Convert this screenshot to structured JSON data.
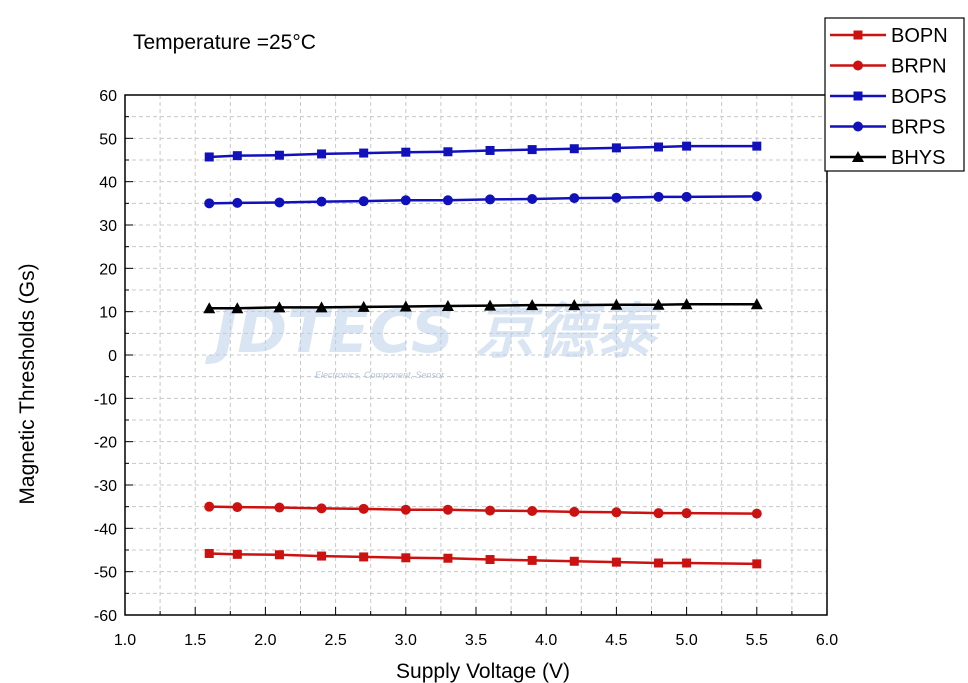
{
  "watermark": {
    "text": "JDTECS 京德泰",
    "subtext": "Electronics, Component, Sensor"
  },
  "chart_data": {
    "type": "line",
    "annotation": "Temperature =25°C",
    "xlabel": "Supply Voltage (V)",
    "ylabel": "Magnetic Thresholds (Gs)",
    "xlim": [
      1.0,
      6.0
    ],
    "ylim": [
      -60,
      60
    ],
    "x_ticks": [
      "1.0",
      "1.5",
      "2.0",
      "2.5",
      "3.0",
      "3.5",
      "4.0",
      "4.5",
      "5.0",
      "5.5",
      "6.0"
    ],
    "y_ticks": [
      "60",
      "50",
      "40",
      "30",
      "20",
      "10",
      "0",
      "-10",
      "-20",
      "-30",
      "-40",
      "-50",
      "-60"
    ],
    "grid": true,
    "legend_position": "top-right",
    "x": [
      1.6,
      1.8,
      2.1,
      2.4,
      2.7,
      3.0,
      3.3,
      3.6,
      3.9,
      4.2,
      4.5,
      4.8,
      5.0,
      5.5
    ],
    "series": [
      {
        "name": "BOPN",
        "color": "#cc1111",
        "marker": "square",
        "values": [
          -45.8,
          -46.0,
          -46.1,
          -46.4,
          -46.6,
          -46.8,
          -46.9,
          -47.2,
          -47.4,
          -47.6,
          -47.8,
          -48.0,
          -48.0,
          -48.2
        ]
      },
      {
        "name": "BRPN",
        "color": "#cc1111",
        "marker": "circle",
        "values": [
          -35.0,
          -35.1,
          -35.2,
          -35.4,
          -35.5,
          -35.7,
          -35.7,
          -35.9,
          -36.0,
          -36.2,
          -36.3,
          -36.5,
          -36.5,
          -36.6
        ]
      },
      {
        "name": "BOPS",
        "color": "#1111bb",
        "marker": "square",
        "values": [
          45.7,
          46.0,
          46.1,
          46.4,
          46.6,
          46.8,
          46.9,
          47.2,
          47.4,
          47.6,
          47.8,
          48.0,
          48.2,
          48.2
        ]
      },
      {
        "name": "BRPS",
        "color": "#1111bb",
        "marker": "circle",
        "values": [
          35.0,
          35.1,
          35.2,
          35.4,
          35.5,
          35.7,
          35.7,
          35.9,
          36.0,
          36.2,
          36.3,
          36.5,
          36.5,
          36.6
        ]
      },
      {
        "name": "BHYS",
        "color": "#000000",
        "marker": "triangle",
        "values": [
          10.8,
          10.8,
          11.0,
          11.0,
          11.1,
          11.2,
          11.3,
          11.4,
          11.5,
          11.5,
          11.6,
          11.6,
          11.7,
          11.7
        ]
      }
    ]
  }
}
